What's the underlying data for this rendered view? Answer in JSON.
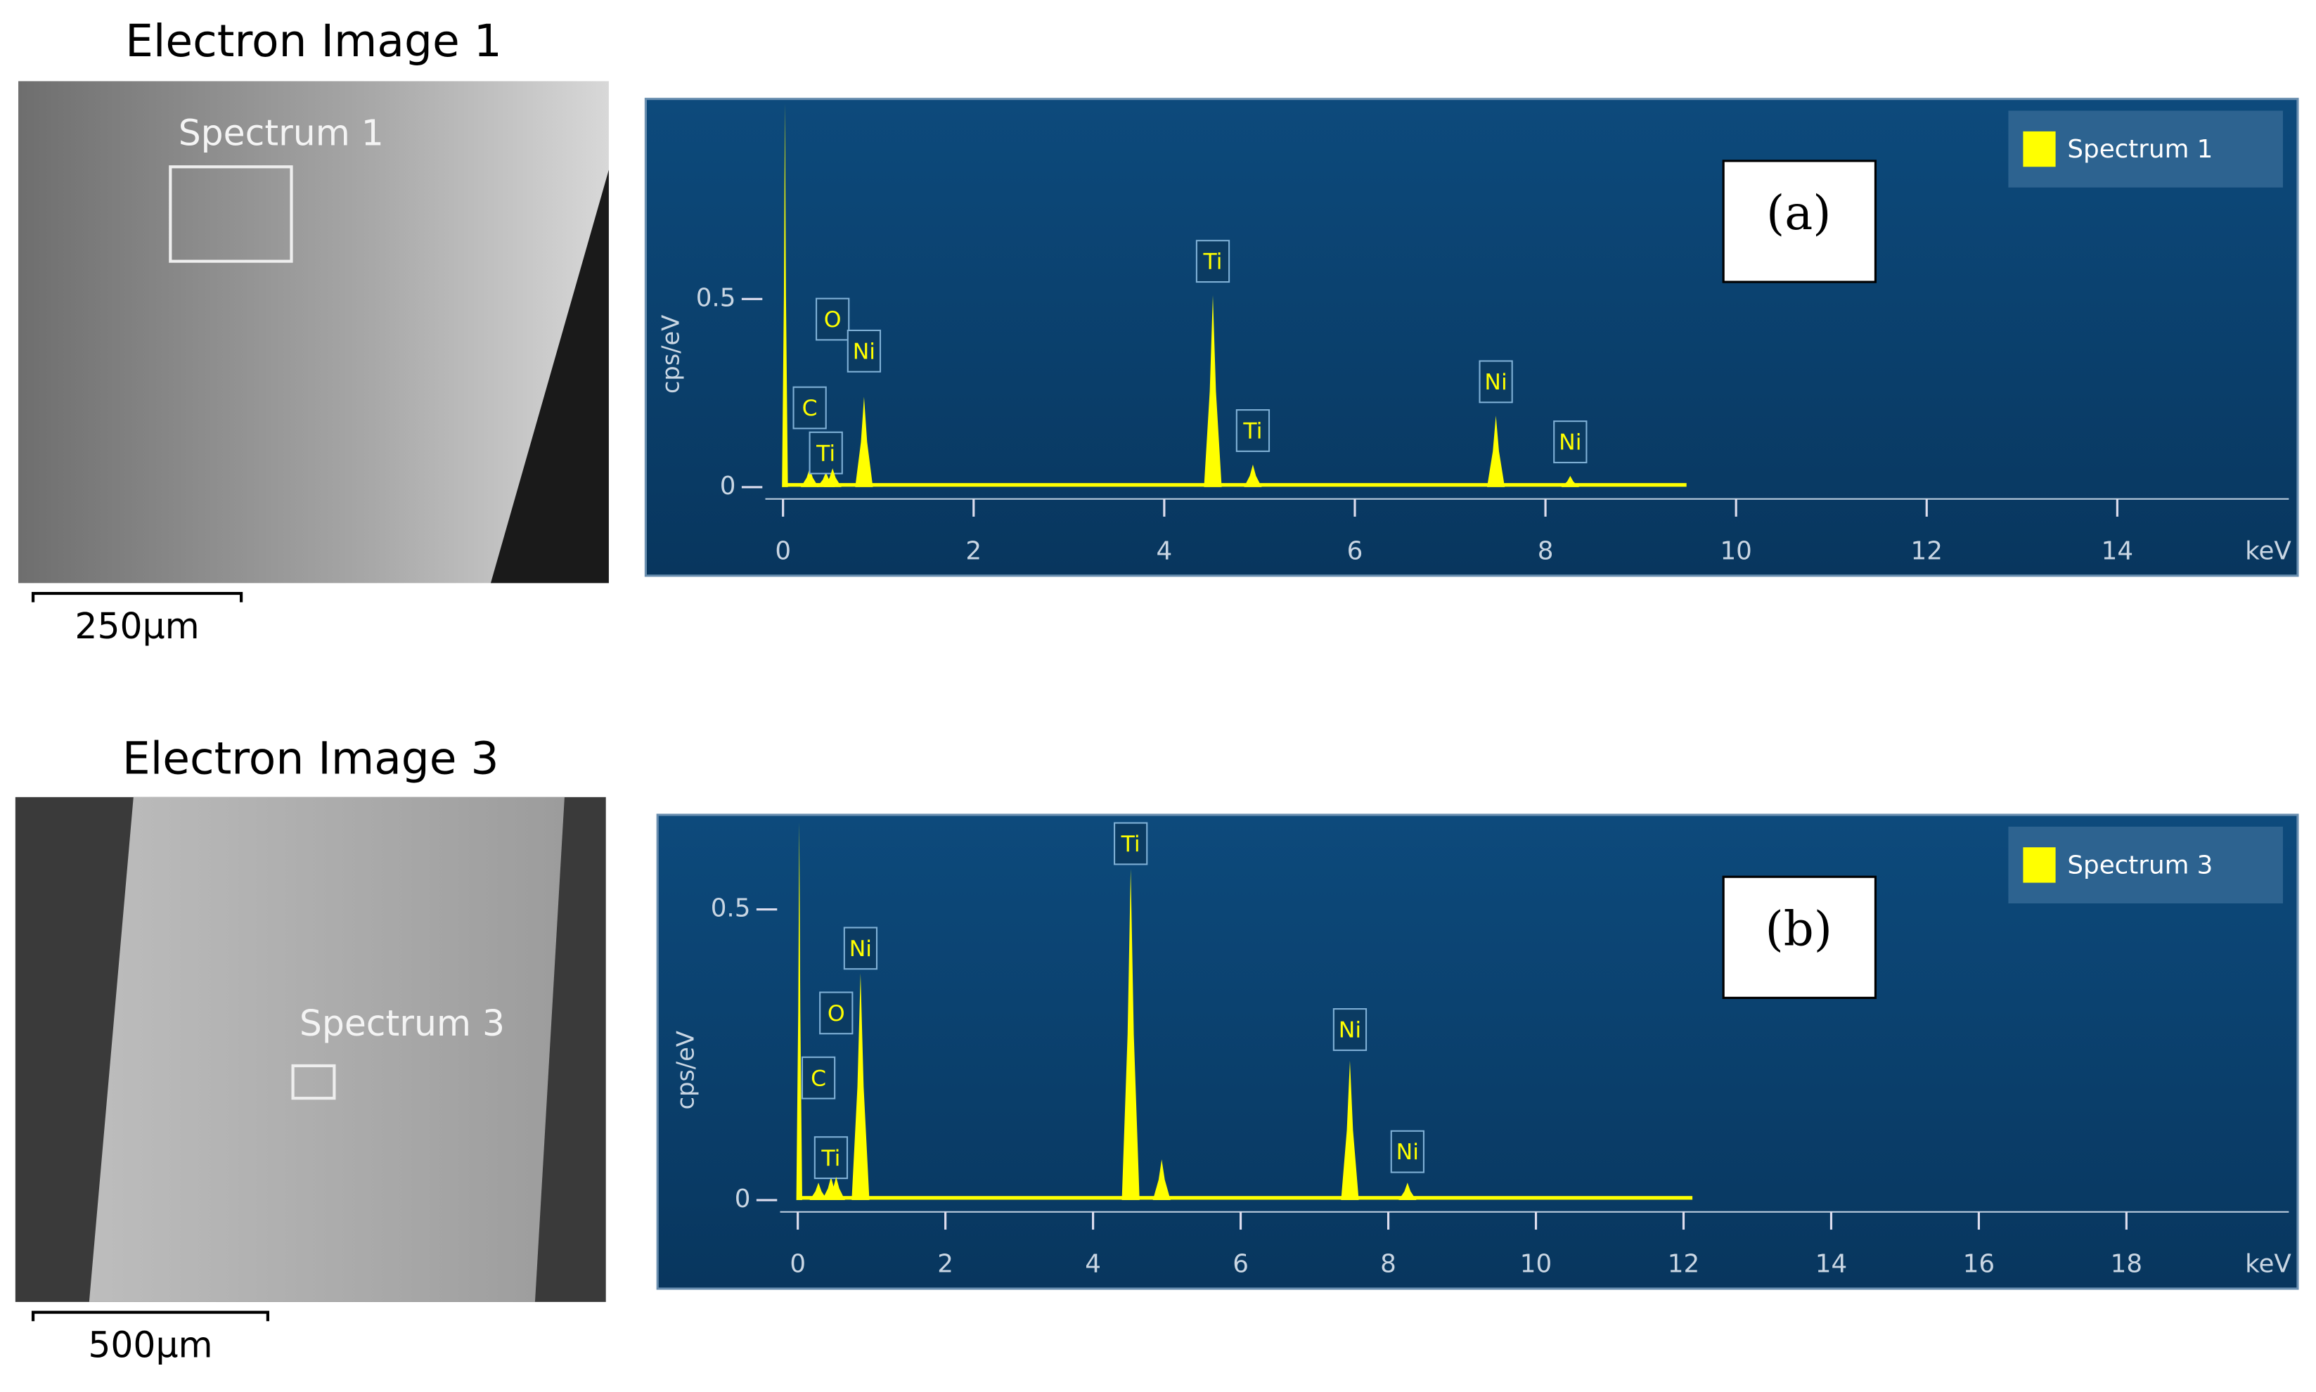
{
  "chart_data": [
    {
      "type": "spectrum",
      "image_title": "Electron Image 1",
      "image_roi_label": "Spectrum 1",
      "scale_bar": "250µm",
      "panel_label": "(a)",
      "legend": "Spectrum 1",
      "color": "#ffff00",
      "xlabel": "keV",
      "ylabel": "cps/eV",
      "x": [
        0.02,
        0.28,
        0.45,
        0.52,
        0.85,
        4.51,
        4.93,
        7.48,
        8.26
      ],
      "values": [
        1.02,
        0.05,
        0.04,
        0.05,
        0.24,
        0.51,
        0.06,
        0.19,
        0.03
      ],
      "peak_labels": [
        null,
        "C",
        "Ti",
        "O",
        "Ni",
        "Ti",
        "Ti",
        "Ni",
        "Ni"
      ],
      "xlim": [
        0,
        15.8
      ],
      "xticks": [
        0,
        2,
        4,
        6,
        8,
        10,
        12,
        14
      ],
      "ylim": [
        0,
        1.02
      ],
      "yticks": [
        0,
        0.5
      ]
    },
    {
      "type": "spectrum",
      "image_title": "Electron Image 3",
      "image_roi_label": "Spectrum 3",
      "scale_bar": "500µm",
      "panel_label": "(b)",
      "legend": "Spectrum 3",
      "color": "#ffff00",
      "xlabel": "keV",
      "ylabel": "cps/eV",
      "x": [
        0.02,
        0.28,
        0.45,
        0.52,
        0.85,
        4.51,
        4.93,
        7.48,
        8.26
      ],
      "values": [
        0.65,
        0.03,
        0.04,
        0.04,
        0.39,
        0.57,
        0.07,
        0.24,
        0.03
      ],
      "peak_labels": [
        null,
        "C",
        "Ti",
        "O",
        "Ni",
        "Ti",
        null,
        "Ni",
        "Ni"
      ],
      "xlim": [
        0,
        20.2
      ],
      "xticks": [
        0,
        2,
        4,
        6,
        8,
        10,
        12,
        14,
        16,
        18
      ],
      "ylim": [
        0,
        0.65
      ],
      "yticks": [
        0,
        0.5
      ]
    }
  ]
}
